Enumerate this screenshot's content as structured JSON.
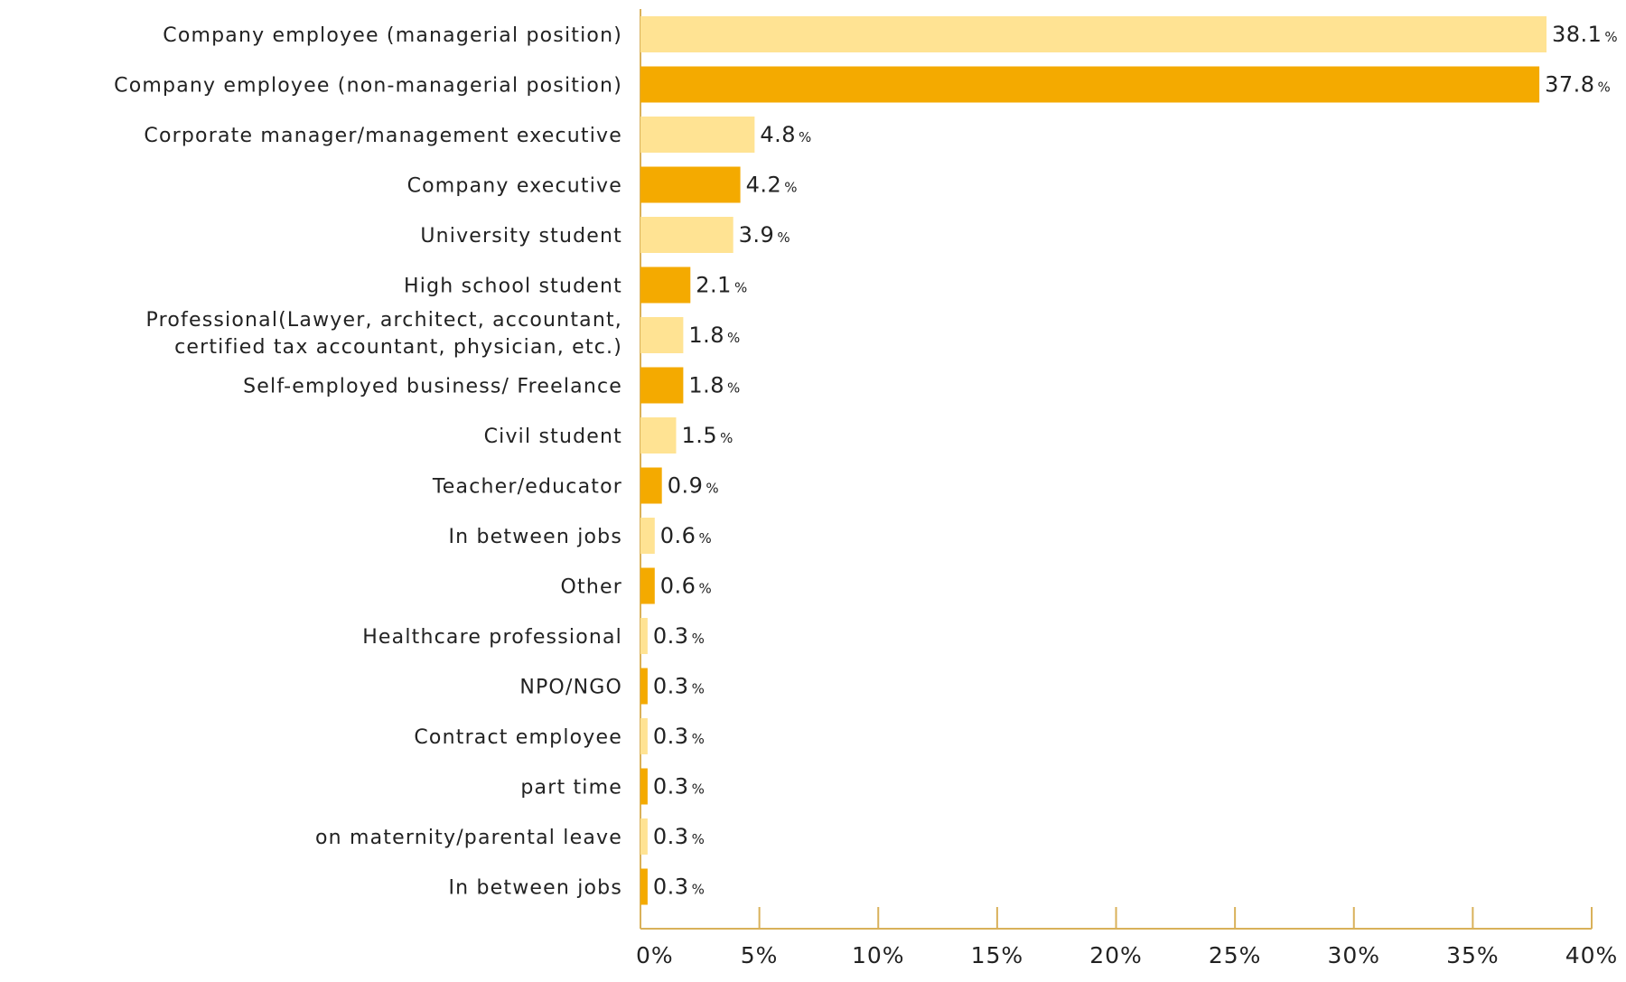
{
  "chart_data": {
    "type": "bar",
    "orientation": "horizontal",
    "categories": [
      [
        "Company employee (managerial position)"
      ],
      [
        "Company employee (non-managerial position)"
      ],
      [
        "Corporate manager/management executive"
      ],
      [
        "Company executive"
      ],
      [
        "University student"
      ],
      [
        "High school student"
      ],
      [
        "Professional(Lawyer, architect, accountant,",
        "certified tax accountant, physician, etc.)"
      ],
      [
        "Self-employed business/ Freelance"
      ],
      [
        "Civil student"
      ],
      [
        "Teacher/educator"
      ],
      [
        "In between jobs"
      ],
      [
        "Other"
      ],
      [
        "Healthcare professional"
      ],
      [
        "NPO/NGO"
      ],
      [
        "Contract employee"
      ],
      [
        "part time"
      ],
      [
        "on maternity/parental leave"
      ],
      [
        "In between jobs"
      ]
    ],
    "values": [
      38.1,
      37.8,
      4.8,
      4.2,
      3.9,
      2.1,
      1.8,
      1.8,
      1.5,
      0.9,
      0.6,
      0.6,
      0.3,
      0.3,
      0.3,
      0.3,
      0.3,
      0.3
    ],
    "value_labels": [
      "38.1",
      "37.8",
      "4.8",
      "4.2",
      "3.9",
      "2.1",
      "1.8",
      "1.8",
      "1.5",
      "0.9",
      "0.6",
      "0.6",
      "0.3",
      "0.3",
      "0.3",
      "0.3",
      "0.3",
      "0.3"
    ],
    "value_suffix": "%",
    "xlim": [
      0,
      40
    ],
    "x_ticks": [
      "0%",
      "5%",
      "10%",
      "15%",
      "20%",
      "25%",
      "30%",
      "35%",
      "40%"
    ],
    "colors": [
      "#FFE393",
      "#F4AA00"
    ],
    "axis_color": "#D9B15A",
    "grid": false,
    "legend": "none",
    "title": "",
    "xlabel": "",
    "ylabel": ""
  }
}
